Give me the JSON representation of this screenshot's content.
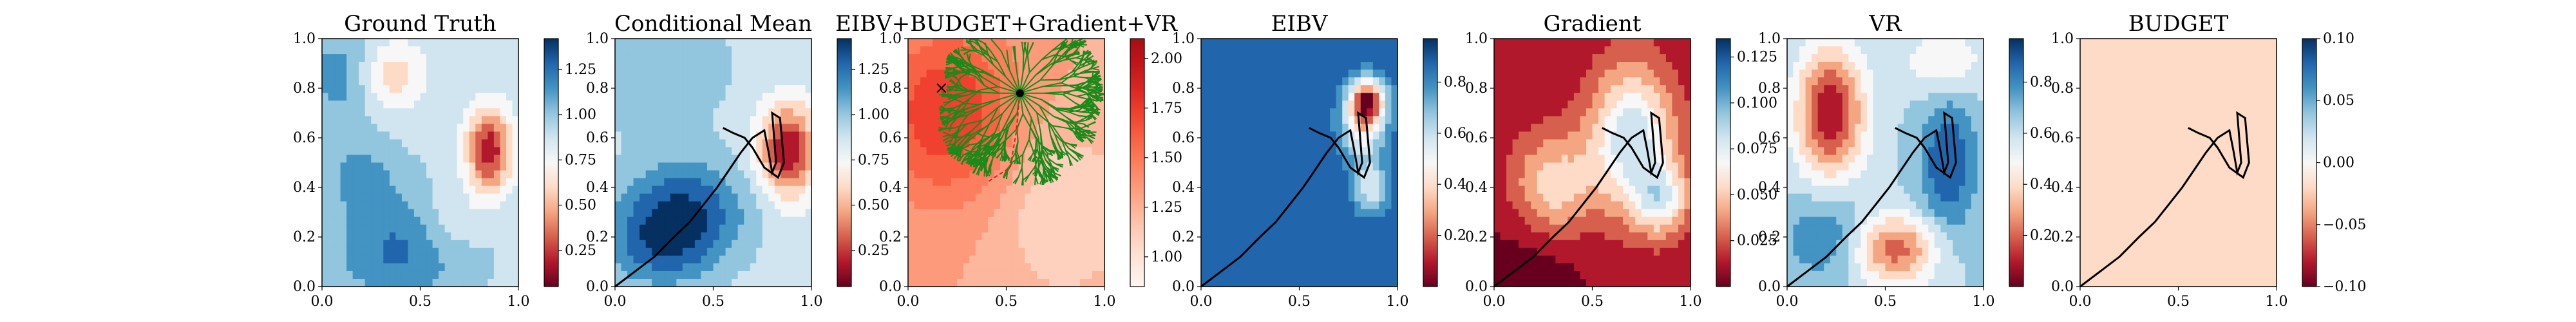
{
  "figure": {
    "panels": [
      {
        "title": "Ground Truth",
        "cmap": "RdBu",
        "map": "gt",
        "colorbar": {
          "ticks": [
            "0.25",
            "0.50",
            "0.75",
            "1.00",
            "1.25"
          ],
          "values": [
            0.25,
            0.5,
            0.75,
            1.0,
            1.25
          ],
          "range": [
            0.05,
            1.42
          ]
        }
      },
      {
        "title": "Conditional Mean",
        "cmap": "RdBu",
        "map": "cm",
        "path": true,
        "colorbar": {
          "ticks": [
            "0.25",
            "0.50",
            "0.75",
            "1.00",
            "1.25"
          ],
          "values": [
            0.25,
            0.5,
            0.75,
            1.0,
            1.25
          ],
          "range": [
            0.05,
            1.42
          ]
        }
      },
      {
        "title": "EIBV+BUDGET+Gradient+VR",
        "cmap": "Reds",
        "map": "cost",
        "tree": true,
        "colorbar": {
          "ticks": [
            "1.00",
            "1.25",
            "1.50",
            "1.75",
            "2.00"
          ],
          "values": [
            1.0,
            1.25,
            1.5,
            1.75,
            2.0
          ],
          "range": [
            0.85,
            2.1
          ]
        }
      },
      {
        "title": "EIBV",
        "cmap": "RdBu",
        "map": "eibv",
        "path": true,
        "colorbar": {
          "ticks": [
            "0.2",
            "0.4",
            "0.6",
            "0.8"
          ],
          "values": [
            0.2,
            0.4,
            0.6,
            0.8
          ],
          "range": [
            0.0,
            0.97
          ]
        }
      },
      {
        "title": "Gradient",
        "cmap": "RdBu",
        "map": "grad",
        "path": true,
        "colorbar": {
          "ticks": [
            "0.025",
            "0.050",
            "0.075",
            "0.100",
            "0.125"
          ],
          "values": [
            0.025,
            0.05,
            0.075,
            0.1,
            0.125
          ],
          "range": [
            0.0,
            0.135
          ]
        }
      },
      {
        "title": "VR",
        "cmap": "RdBu",
        "map": "vr",
        "path": true,
        "colorbar": {
          "ticks": [
            "0.2",
            "0.4",
            "0.6",
            "0.8"
          ],
          "values": [
            0.2,
            0.4,
            0.6,
            0.8
          ],
          "range": [
            0.0,
            0.97
          ]
        }
      },
      {
        "title": "BUDGET",
        "cmap": "RdBu",
        "map": "budget",
        "path": true,
        "colorbar": {
          "ticks": [
            "−0.10",
            "−0.05",
            "0.00",
            "0.05",
            "0.10"
          ],
          "values": [
            -0.1,
            -0.05,
            0.0,
            0.05,
            0.1
          ],
          "range": [
            -0.1,
            0.1
          ]
        }
      }
    ],
    "xticks": [
      "0.0",
      "0.5",
      "1.0"
    ],
    "xtick_values": [
      0.0,
      0.5,
      1.0
    ],
    "yticks": [
      "0.0",
      "0.2",
      "0.4",
      "0.6",
      "0.8",
      "1.0"
    ],
    "ytick_values": [
      0.0,
      0.2,
      0.4,
      0.6,
      0.8,
      1.0
    ]
  },
  "chart_data": {
    "type": "heatmap",
    "subplots": [
      "Ground Truth",
      "Conditional Mean",
      "EIBV+BUDGET+Gradient+VR",
      "EIBV",
      "Gradient",
      "VR",
      "BUDGET"
    ],
    "xlim": [
      0,
      1
    ],
    "ylim": [
      0,
      1
    ],
    "trajectory": [
      [
        0.0,
        0.0
      ],
      [
        0.1,
        0.06
      ],
      [
        0.2,
        0.12
      ],
      [
        0.3,
        0.2
      ],
      [
        0.38,
        0.26
      ],
      [
        0.45,
        0.33
      ],
      [
        0.52,
        0.4
      ],
      [
        0.58,
        0.47
      ],
      [
        0.64,
        0.54
      ],
      [
        0.7,
        0.6
      ],
      [
        0.76,
        0.63
      ],
      [
        0.78,
        0.55
      ],
      [
        0.8,
        0.46
      ],
      [
        0.82,
        0.5
      ],
      [
        0.8,
        0.7
      ],
      [
        0.84,
        0.68
      ],
      [
        0.86,
        0.5
      ],
      [
        0.83,
        0.44
      ],
      [
        0.76,
        0.48
      ],
      [
        0.7,
        0.56
      ],
      [
        0.66,
        0.6
      ],
      [
        0.6,
        0.62
      ],
      [
        0.55,
        0.64
      ]
    ],
    "tree_root": [
      0.57,
      0.78
    ],
    "tree_selected_path": [
      [
        0.57,
        0.78
      ],
      [
        0.55,
        0.62
      ],
      [
        0.52,
        0.48
      ],
      [
        0.4,
        0.42
      ]
    ],
    "marker": [
      0.17,
      0.8
    ]
  }
}
